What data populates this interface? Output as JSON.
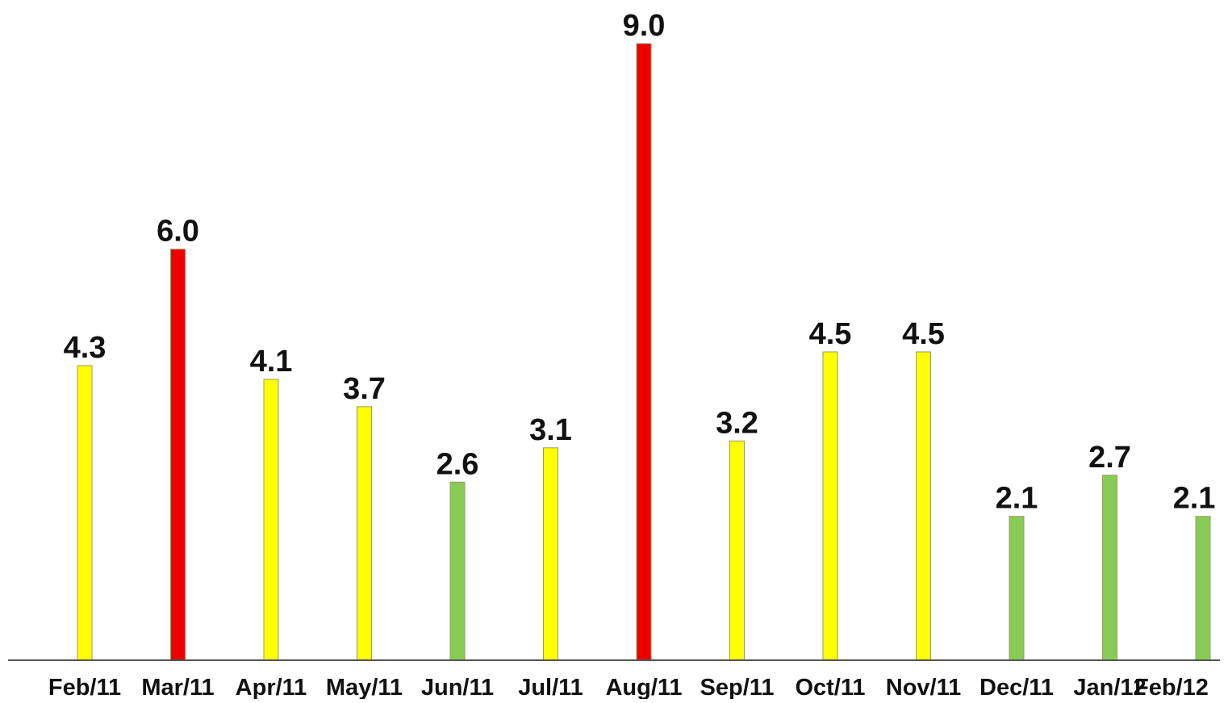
{
  "chart_data": {
    "type": "bar",
    "title": "",
    "xlabel": "",
    "ylabel": "",
    "categories": [
      "Feb/11",
      "Mar/11",
      "Apr/11",
      "May/11",
      "Jun/11",
      "Jul/11",
      "Aug/11",
      "Sep/11",
      "Oct/11",
      "Nov/11",
      "Dec/11",
      "Jan/12",
      "Feb/12"
    ],
    "values": [
      4.3,
      6.0,
      4.1,
      3.7,
      2.6,
      3.1,
      9.0,
      3.2,
      4.5,
      4.5,
      2.1,
      2.7,
      2.1
    ],
    "value_labels": [
      "4.3",
      "6.0",
      "4.1",
      "3.7",
      "2.6",
      "3.1",
      "9.0",
      "3.2",
      "4.5",
      "4.5",
      "2.1",
      "2.7",
      "2.1"
    ],
    "bar_status": [
      "yellow",
      "red",
      "yellow",
      "yellow",
      "green",
      "yellow",
      "red",
      "yellow",
      "yellow",
      "yellow",
      "green",
      "green",
      "green"
    ],
    "ylim": [
      0,
      9.0
    ],
    "grid": false,
    "legend": "none",
    "colors": {
      "red": "#ee0000",
      "yellow": "#ffff00",
      "green": "#88cc55",
      "axis": "#555555",
      "bar_outline": "#9a9a6a"
    }
  }
}
